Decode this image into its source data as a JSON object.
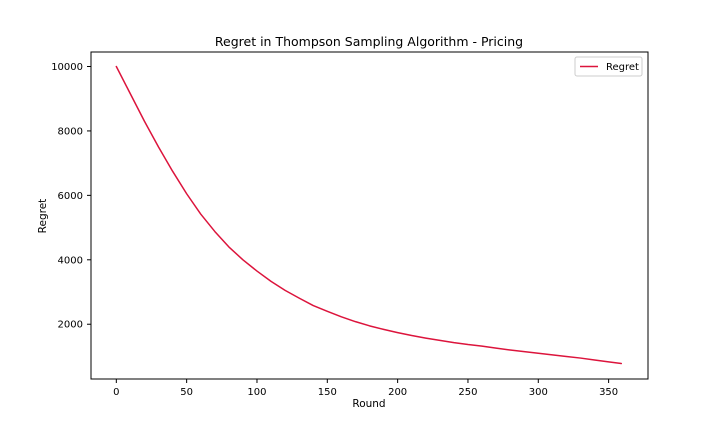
{
  "chart_data": {
    "type": "line",
    "title": "Regret in Thompson Sampling Algorithm - Pricing",
    "xlabel": "Round",
    "ylabel": "Regret",
    "xlim": [
      -18,
      378
    ],
    "ylim": [
      300,
      10450
    ],
    "xticks": [
      0,
      50,
      100,
      150,
      200,
      250,
      300,
      350
    ],
    "yticks": [
      2000,
      4000,
      6000,
      8000,
      10000
    ],
    "grid": false,
    "legend_position": "top-right",
    "series": [
      {
        "name": "Regret",
        "color": "#dc143c",
        "x": [
          0,
          10,
          20,
          30,
          40,
          50,
          60,
          70,
          80,
          90,
          100,
          110,
          120,
          130,
          140,
          150,
          160,
          170,
          180,
          190,
          200,
          210,
          220,
          230,
          240,
          250,
          260,
          270,
          280,
          290,
          300,
          310,
          320,
          330,
          340,
          350,
          359
        ],
        "y": [
          10000,
          9150,
          8300,
          7500,
          6750,
          6050,
          5420,
          4880,
          4400,
          4000,
          3650,
          3330,
          3050,
          2810,
          2580,
          2400,
          2230,
          2080,
          1950,
          1840,
          1740,
          1650,
          1570,
          1500,
          1430,
          1370,
          1320,
          1260,
          1200,
          1150,
          1100,
          1050,
          1000,
          950,
          890,
          830,
          780
        ]
      }
    ]
  }
}
